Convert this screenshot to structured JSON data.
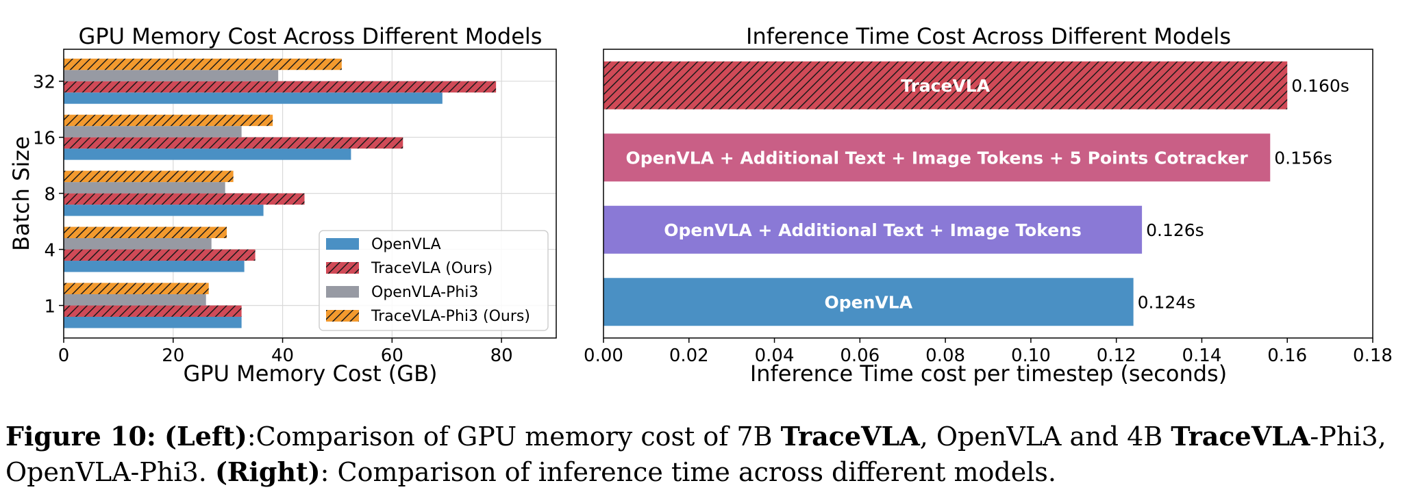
{
  "colors": {
    "openvla": "#4a90c4",
    "tracevla": "#d04a57",
    "openvla_phi3": "#979aa3",
    "tracevla_phi3": "#f39a2e",
    "bar_openvla_text_image_cotracker": "#c95f86",
    "bar_openvla_text_image": "#8a79d6"
  },
  "chart_data": [
    {
      "type": "bar",
      "orientation": "horizontal",
      "title": "GPU Memory Cost Across Different Models",
      "xlabel": "GPU Memory Cost (GB)",
      "ylabel": "Batch Size",
      "categories": [
        "1",
        "4",
        "8",
        "16",
        "32"
      ],
      "xlim": [
        0,
        90
      ],
      "xticks": [
        "0",
        "20",
        "40",
        "60",
        "80"
      ],
      "grid": true,
      "legend_position": "lower-right",
      "series": [
        {
          "name": "OpenVLA",
          "values": [
            32.5,
            33,
            36.5,
            52.5,
            69.2
          ],
          "hatch": false,
          "color": "#4a90c4"
        },
        {
          "name": "TraceVLA (Ours)",
          "values": [
            32.5,
            35,
            44,
            62,
            79
          ],
          "hatch": true,
          "color": "#d04a57"
        },
        {
          "name": "OpenVLA-Phi3",
          "values": [
            26,
            27,
            29.5,
            32.5,
            39.2
          ],
          "hatch": false,
          "color": "#979aa3"
        },
        {
          "name": "TraceVLA-Phi3 (Ours)",
          "values": [
            26.5,
            29.8,
            31,
            38.2,
            50.8
          ],
          "hatch": true,
          "color": "#f39a2e"
        }
      ]
    },
    {
      "type": "bar",
      "orientation": "horizontal",
      "title": "Inference Time Cost Across Different Models",
      "xlabel": "Inference Time cost per timestep (seconds)",
      "ylabel": "",
      "xlim": [
        0,
        0.18
      ],
      "xticks": [
        "0.00",
        "0.02",
        "0.04",
        "0.06",
        "0.08",
        "0.10",
        "0.12",
        "0.14",
        "0.16",
        "0.18"
      ],
      "grid": false,
      "bars": [
        {
          "label": "TraceVLA",
          "value": 0.16,
          "value_label": "0.160s",
          "hatch": true,
          "color": "#d04a57"
        },
        {
          "label": "OpenVLA + Additional Text + Image Tokens + 5 Points Cotracker",
          "value": 0.156,
          "value_label": "0.156s",
          "hatch": false,
          "color": "#c95f86"
        },
        {
          "label": "OpenVLA + Additional Text + Image Tokens",
          "value": 0.126,
          "value_label": "0.126s",
          "hatch": false,
          "color": "#8a79d6"
        },
        {
          "label": "OpenVLA",
          "value": 0.124,
          "value_label": "0.124s",
          "hatch": false,
          "color": "#4a90c4"
        }
      ]
    }
  ],
  "caption": {
    "figure_label": "Figure 10:",
    "left_label": "(Left)",
    "seg1": ":Comparison of GPU memory cost of 7B ",
    "tracevla_1": "TraceVLA",
    "seg2": ", OpenVLA and 4B ",
    "tracevla_2": "TraceVLA",
    "seg3": "-Phi3, OpenVLA-Phi3. ",
    "right_label": "(Right)",
    "seg4": ": Comparison of inference time across different models."
  }
}
